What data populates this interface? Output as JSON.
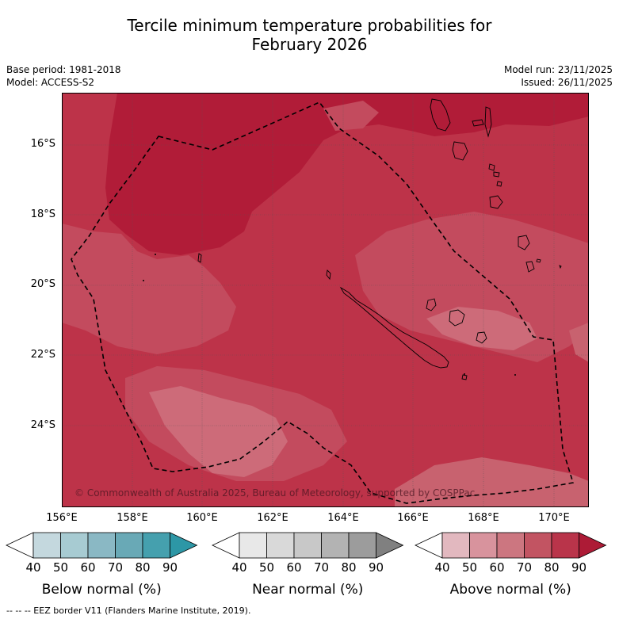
{
  "title_line1": "Tercile minimum temperature probabilities for",
  "title_line2": "February 2026",
  "base_period": "Base period: 1981-2018",
  "model": "Model: ACCESS-S2",
  "model_run": "Model run: 23/11/2025",
  "issued": "Issued: 26/11/2025",
  "copyright": "© Commonwealth of Australia 2025, Bureau of Meteorology, supported by COSPPac",
  "footer": "--  --  -- EEZ border V11 (Flanders Marine Institute, 2019).",
  "lat_labels": [
    "16°S",
    "18°S",
    "20°S",
    "22°S",
    "24°S"
  ],
  "lon_labels": [
    "156°E",
    "158°E",
    "160°E",
    "162°E",
    "164°E",
    "166°E",
    "168°E",
    "170°E"
  ],
  "legends": [
    {
      "name": "Below normal (%)",
      "ticks": [
        "40",
        "50",
        "60",
        "70",
        "80",
        "90"
      ],
      "colors": [
        "#ffffff",
        "#c4d8de",
        "#a7cbd2",
        "#8ab8c4",
        "#69a9b6",
        "#45a0ae",
        "#2d97a6"
      ]
    },
    {
      "name": "Near normal (%)",
      "ticks": [
        "40",
        "50",
        "60",
        "70",
        "80",
        "90"
      ],
      "colors": [
        "#ffffff",
        "#e8e8e8",
        "#d9d9d9",
        "#c8c8c8",
        "#b3b3b3",
        "#9c9c9c",
        "#808080"
      ]
    },
    {
      "name": "Above normal (%)",
      "ticks": [
        "40",
        "50",
        "60",
        "70",
        "80",
        "90"
      ],
      "colors": [
        "#ffffff",
        "#e2b8bf",
        "#d8939d",
        "#cc7680",
        "#c25462",
        "#b9344a",
        "#ad1b36"
      ]
    }
  ]
}
